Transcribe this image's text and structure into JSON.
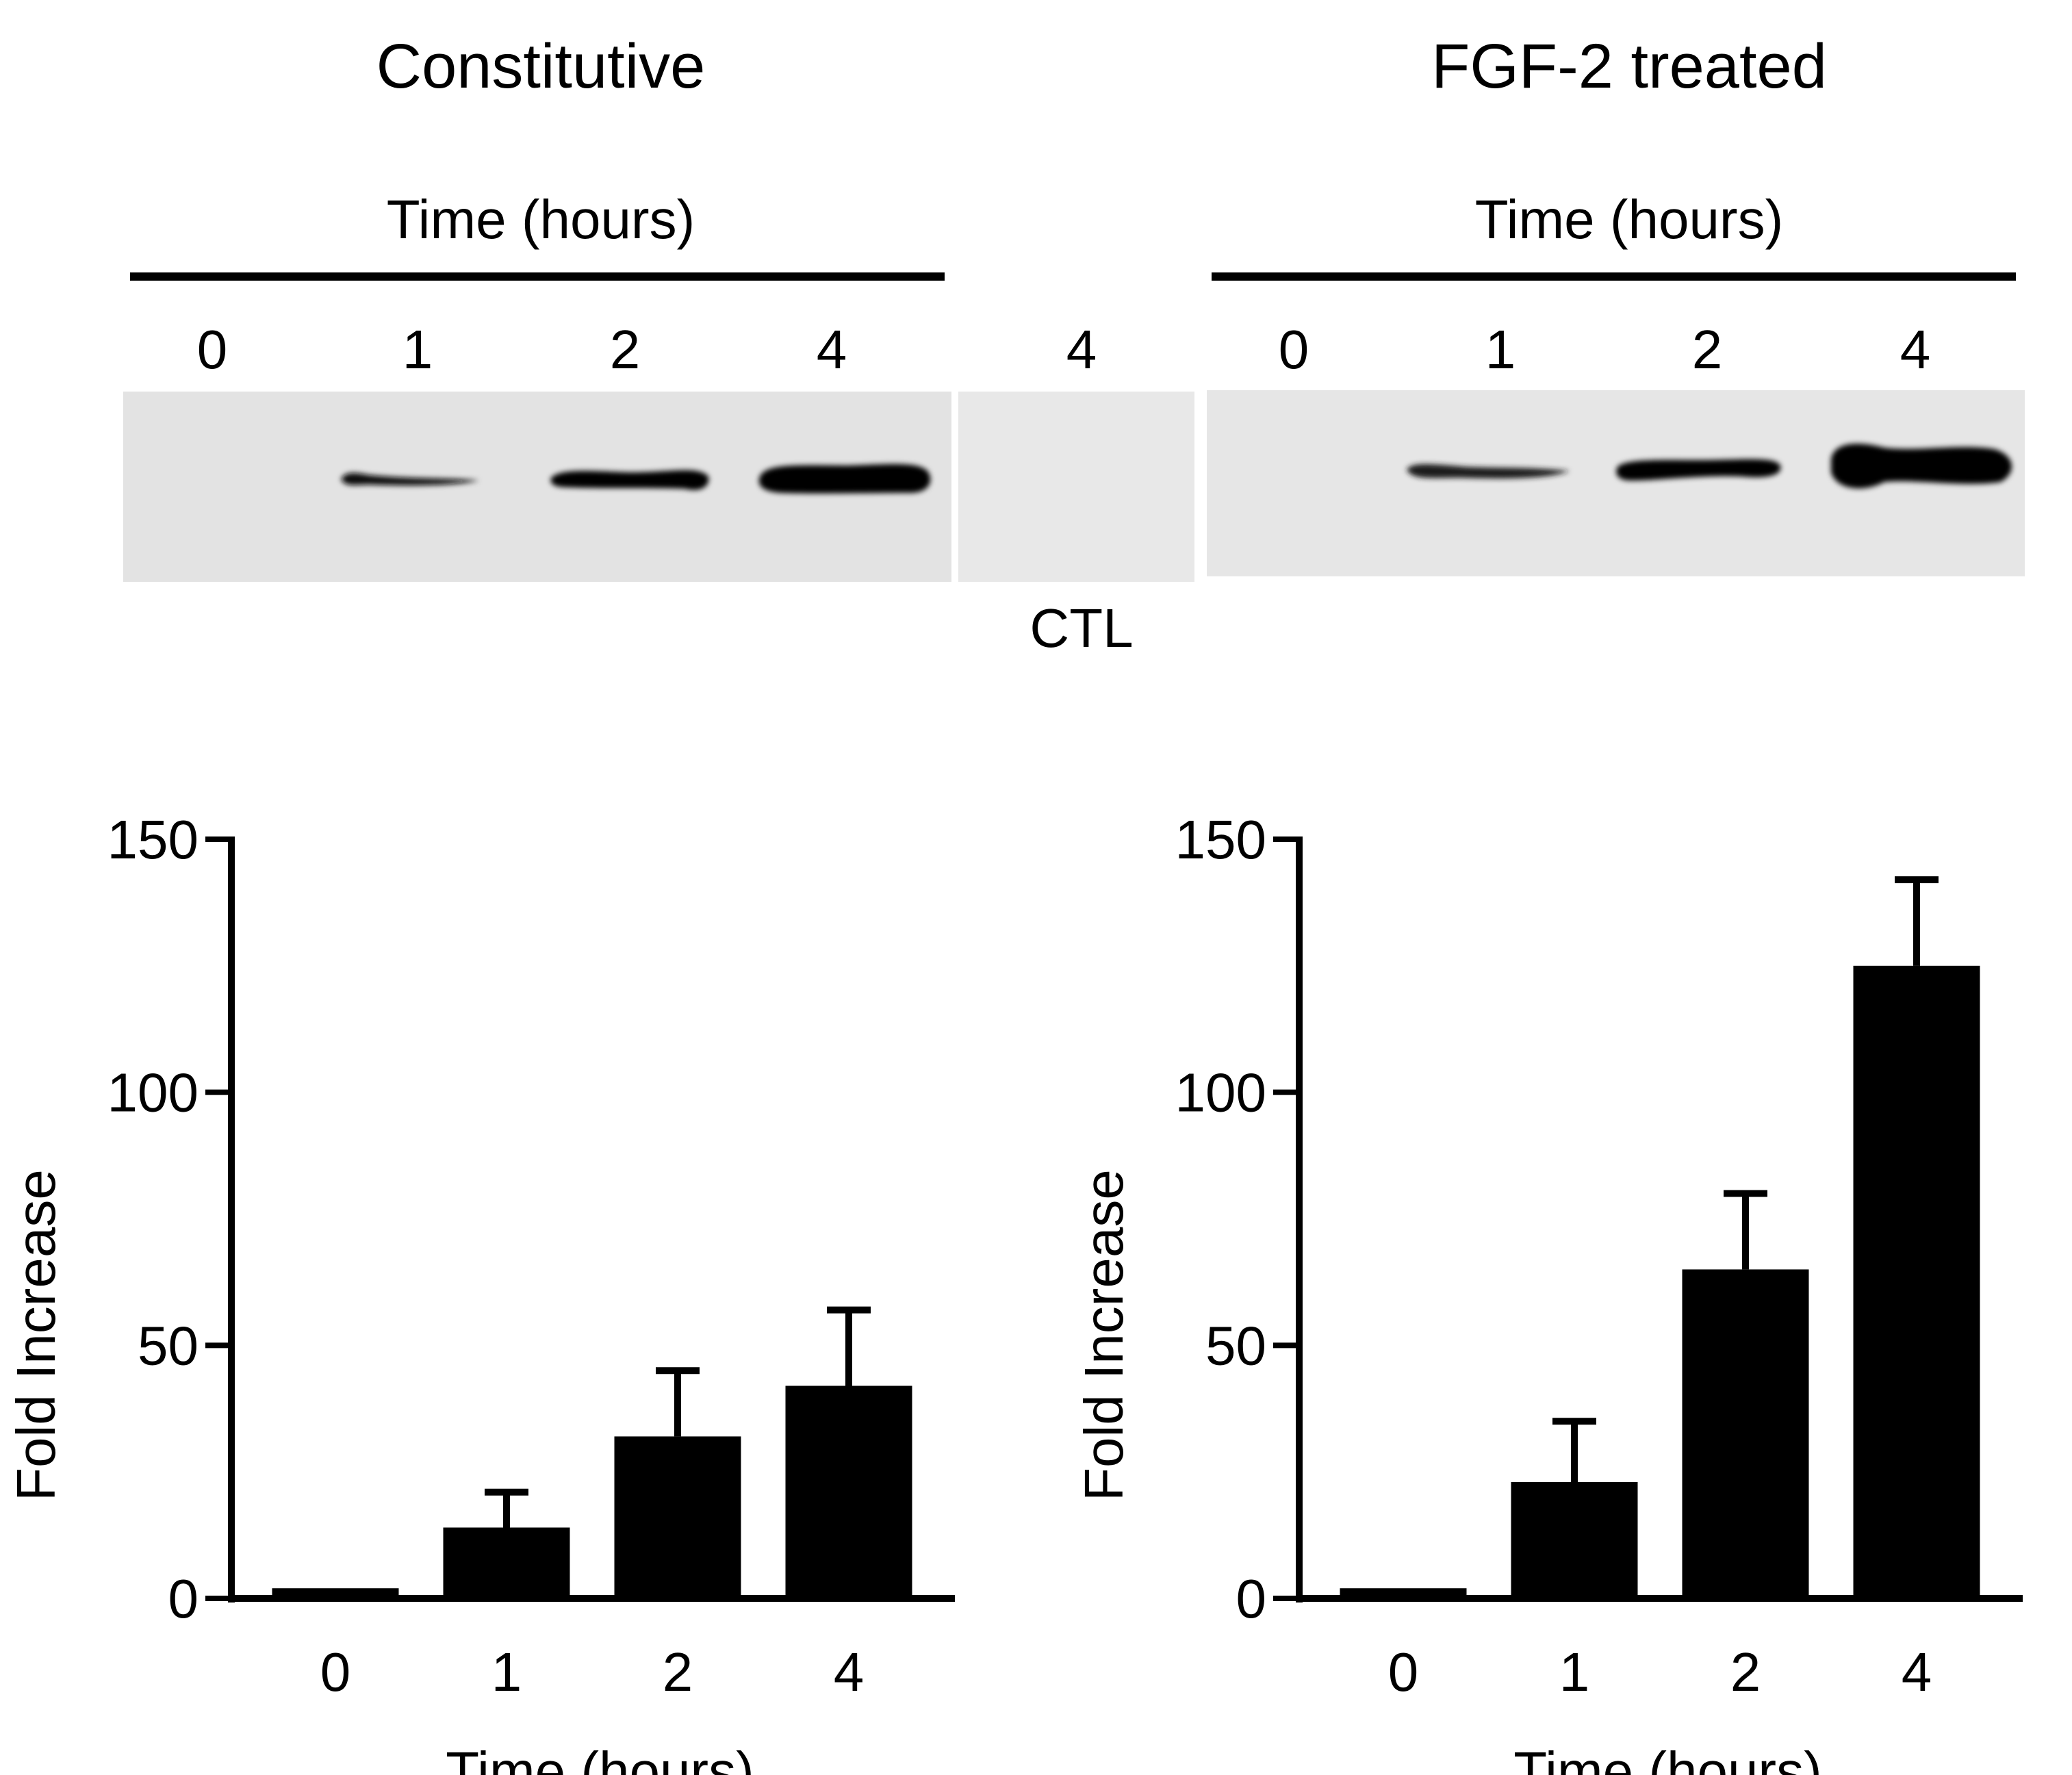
{
  "panels": {
    "left": {
      "title": "Constitutive",
      "time_label": "Time (hours)",
      "lanes": [
        "0",
        "1",
        "2",
        "4"
      ]
    },
    "ctl": {
      "lane": "4",
      "label": "CTL"
    },
    "right": {
      "title": "FGF-2 treated",
      "time_label": "Time (hours)",
      "lanes": [
        "0",
        "1",
        "2",
        "4"
      ]
    }
  },
  "chart_data": [
    {
      "type": "bar",
      "title": "Constitutive",
      "categories": [
        "0",
        "1",
        "2",
        "4"
      ],
      "values": [
        2,
        14,
        32,
        42
      ],
      "errors": [
        0,
        7,
        13,
        15
      ],
      "ylabel": "Fold Increase",
      "xlabel": "Time (hours)",
      "ylim": [
        0,
        150
      ],
      "yticks": [
        "0",
        "50",
        "100",
        "150"
      ]
    },
    {
      "type": "bar",
      "title": "FGF-2 treated",
      "categories": [
        "0",
        "1",
        "2",
        "4"
      ],
      "values": [
        2,
        23,
        65,
        125
      ],
      "errors": [
        0,
        12,
        15,
        17
      ],
      "ylabel": "Fold Increase",
      "xlabel": "Time (hours)",
      "ylim": [
        0,
        150
      ],
      "yticks": [
        "0",
        "50",
        "100",
        "150"
      ]
    }
  ]
}
